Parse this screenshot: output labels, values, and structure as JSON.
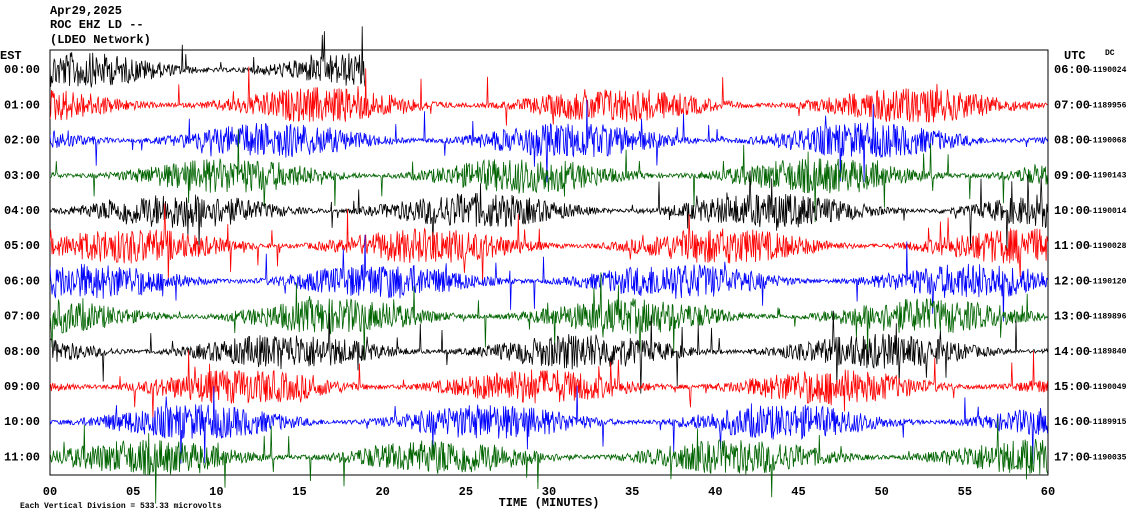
{
  "header": {
    "date": "Apr29,2025",
    "station": "ROC EHZ LD --",
    "network": "(LDEO Network)"
  },
  "left_axis_title": "EST",
  "right_axis_title": "UTC",
  "dc_title": "DC",
  "rows": [
    {
      "est": "00:00",
      "utc": "06:00",
      "dc": "-1190024"
    },
    {
      "est": "01:00",
      "utc": "07:00",
      "dc": "-1189956"
    },
    {
      "est": "02:00",
      "utc": "08:00",
      "dc": "-1190068"
    },
    {
      "est": "03:00",
      "utc": "09:00",
      "dc": "-1190143"
    },
    {
      "est": "04:00",
      "utc": "10:00",
      "dc": "-1190014"
    },
    {
      "est": "05:00",
      "utc": "11:00",
      "dc": "-1190028"
    },
    {
      "est": "06:00",
      "utc": "12:00",
      "dc": "-1190120"
    },
    {
      "est": "07:00",
      "utc": "13:00",
      "dc": "-1189896"
    },
    {
      "est": "08:00",
      "utc": "14:00",
      "dc": "-1189840"
    },
    {
      "est": "09:00",
      "utc": "15:00",
      "dc": "-1190049"
    },
    {
      "est": "10:00",
      "utc": "16:00",
      "dc": "-1189915"
    },
    {
      "est": "11:00",
      "utc": "17:00",
      "dc": "-1190035"
    }
  ],
  "trace_colors": [
    "#000000",
    "#ff0000",
    "#0000ff",
    "#006400"
  ],
  "x_axis_title": "TIME (MINUTES)",
  "x_ticks": [
    "00",
    "05",
    "10",
    "15",
    "20",
    "25",
    "30",
    "35",
    "40",
    "45",
    "50",
    "55",
    "60"
  ],
  "footer": "Each Vertical Division = 533.33 microvolts"
}
